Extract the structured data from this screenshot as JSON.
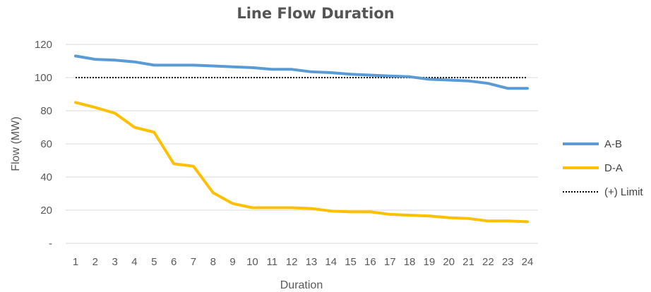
{
  "chart_data": {
    "type": "line",
    "title": "Line Flow Duration",
    "xlabel": "Duration",
    "ylabel": "Flow (MW)",
    "categories": [
      "1",
      "2",
      "3",
      "4",
      "5",
      "6",
      "7",
      "8",
      "9",
      "10",
      "11",
      "12",
      "13",
      "14",
      "15",
      "16",
      "17",
      "18",
      "19",
      "20",
      "21",
      "22",
      "23",
      "24"
    ],
    "ylim": [
      0,
      120
    ],
    "yticks": [
      {
        "value": 0,
        "label": "-"
      },
      {
        "value": 20,
        "label": "20"
      },
      {
        "value": 40,
        "label": "40"
      },
      {
        "value": 60,
        "label": "60"
      },
      {
        "value": 80,
        "label": "80"
      },
      {
        "value": 100,
        "label": "100"
      },
      {
        "value": 120,
        "label": "120"
      }
    ],
    "grid": true,
    "legend_position": "right",
    "series": [
      {
        "name": "A-B",
        "color": "#5B9BD5",
        "style": "solid",
        "values": [
          113,
          111,
          110.5,
          109.5,
          107.5,
          107.5,
          107.5,
          107,
          106.5,
          106,
          105,
          105,
          103.5,
          103,
          102,
          101.5,
          101,
          100.5,
          99,
          98.5,
          98,
          96.5,
          93.5,
          93.5
        ]
      },
      {
        "name": "D-A",
        "color": "#FFC000",
        "style": "solid",
        "values": [
          85,
          82,
          78.5,
          70,
          67,
          48,
          46.5,
          30.5,
          24,
          21.5,
          21.5,
          21.5,
          21,
          19.5,
          19,
          19,
          17.5,
          17,
          16.5,
          15.5,
          15,
          13.5,
          13.5,
          13
        ]
      },
      {
        "name": "(+) Limit",
        "color": "#000000",
        "style": "dotted",
        "values": [
          100,
          100,
          100,
          100,
          100,
          100,
          100,
          100,
          100,
          100,
          100,
          100,
          100,
          100,
          100,
          100,
          100,
          100,
          100,
          100,
          100,
          100,
          100,
          100
        ]
      }
    ]
  }
}
